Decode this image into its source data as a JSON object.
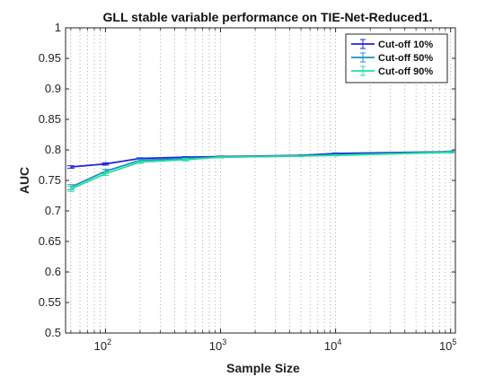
{
  "chart_data": {
    "type": "line",
    "title": "GLL stable variable performance on TIE-Net-Reduced1.",
    "xlabel": "Sample Size",
    "ylabel": "AUC",
    "x_scale": "log",
    "xlim": [
      45,
      110000
    ],
    "ylim": [
      0.5,
      1.0
    ],
    "x_ticks": [
      {
        "base": "10",
        "exp": "2"
      },
      {
        "base": "10",
        "exp": "3"
      },
      {
        "base": "10",
        "exp": "4"
      },
      {
        "base": "10",
        "exp": "5"
      }
    ],
    "y_ticks": [
      "0.5",
      "0.55",
      "0.6",
      "0.65",
      "0.7",
      "0.75",
      "0.8",
      "0.85",
      "0.9",
      "0.95",
      "1"
    ],
    "grid": "vertical-minor-dotted",
    "legend_position": "top-right",
    "x": [
      50,
      100,
      200,
      500,
      1000,
      5000,
      10000,
      100000
    ],
    "series": [
      {
        "name": "Cut-off 10%",
        "color": "#1f24d6",
        "values": [
          0.772,
          0.777,
          0.786,
          0.788,
          0.789,
          0.791,
          0.794,
          0.797
        ],
        "error": [
          0.002,
          0.002,
          0.001,
          0.001,
          0.001,
          0.001,
          0.001,
          0.001
        ]
      },
      {
        "name": "Cut-off 50%",
        "color": "#1d8fc9",
        "values": [
          0.739,
          0.765,
          0.783,
          0.786,
          0.788,
          0.79,
          0.792,
          0.797
        ],
        "error": [
          0.004,
          0.003,
          0.002,
          0.001,
          0.001,
          0.001,
          0.001,
          0.001
        ]
      },
      {
        "name": "Cut-off 90%",
        "color": "#22e39a",
        "values": [
          0.736,
          0.761,
          0.78,
          0.784,
          0.788,
          0.79,
          0.791,
          0.796
        ],
        "error": [
          0.004,
          0.003,
          0.002,
          0.002,
          0.001,
          0.001,
          0.001,
          0.001
        ]
      }
    ]
  }
}
